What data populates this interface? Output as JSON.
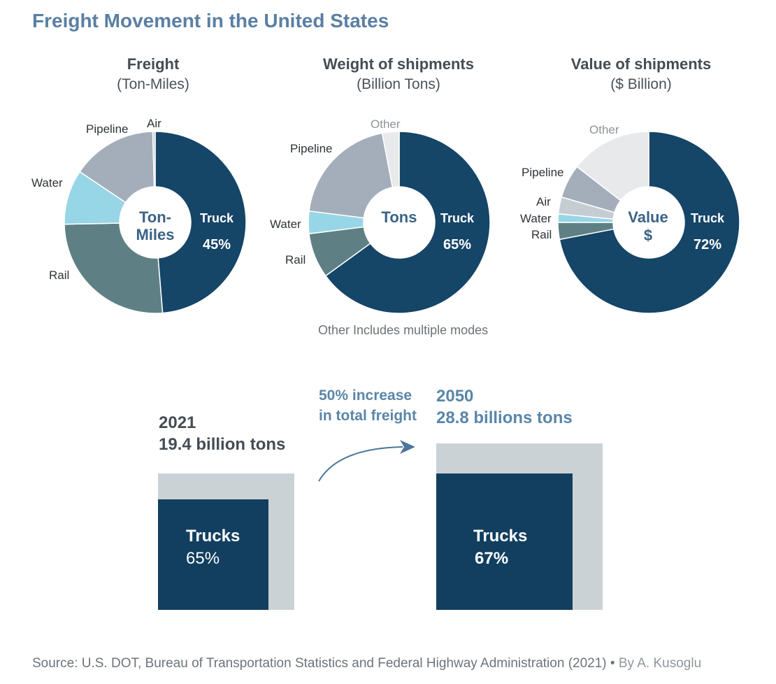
{
  "title": "Freight Movement in the United States",
  "colors": {
    "Truck": "#154567",
    "Rail": "#5e8084",
    "Water": "#97d6e6",
    "Pipeline": "#a3aeba",
    "Air": "#c6cdd2",
    "Other": "#e7e9eb",
    "accent": "#5a7fa3"
  },
  "chart_data": [
    {
      "type": "pie",
      "title": "Freight",
      "subtitle": "(Ton-Miles)",
      "center_label": [
        "Ton-",
        "Miles"
      ],
      "slices": [
        {
          "label": "Truck",
          "value": 45,
          "value_label": "45%"
        },
        {
          "label": "Rail",
          "value": 24
        },
        {
          "label": "Water",
          "value": 9
        },
        {
          "label": "Pipeline",
          "value": 14
        },
        {
          "label": "Air",
          "value": 0.4
        }
      ]
    },
    {
      "type": "pie",
      "title": "Weight of shipments",
      "subtitle": "(Billion Tons)",
      "center_label": [
        "Tons"
      ],
      "slices": [
        {
          "label": "Truck",
          "value": 65,
          "value_label": "65%"
        },
        {
          "label": "Rail",
          "value": 8
        },
        {
          "label": "Water",
          "value": 4
        },
        {
          "label": "Pipeline",
          "value": 20
        },
        {
          "label": "Other",
          "value": 3
        }
      ]
    },
    {
      "type": "pie",
      "title": "Value of shipments",
      "subtitle": "($ Billion)",
      "center_label": [
        "Value",
        "$"
      ],
      "slices": [
        {
          "label": "Truck",
          "value": 72,
          "value_label": "72%"
        },
        {
          "label": "Rail",
          "value": 3
        },
        {
          "label": "Water",
          "value": 1.5
        },
        {
          "label": "Air",
          "value": 3
        },
        {
          "label": "Pipeline",
          "value": 6
        },
        {
          "label": "Other",
          "value": 14.5
        }
      ]
    }
  ],
  "note": "Other Includes multiple modes",
  "comparison": {
    "before": {
      "year": "2021",
      "amount": "19.4 billion tons",
      "box_label": "Trucks",
      "box_pct": "65%",
      "truck_share": 65
    },
    "increase": [
      "50% increase",
      "in total freight"
    ],
    "after": {
      "year": "2050",
      "amount": "28.8 billions tons",
      "box_label": "Trucks",
      "box_pct": "67%",
      "truck_share": 67
    }
  },
  "source": {
    "text": "Source:  U.S. DOT, Bureau of Transportation Statistics and Federal Highway Administration (2021)",
    "separator": " • ",
    "author": "By A. Kusoglu"
  }
}
